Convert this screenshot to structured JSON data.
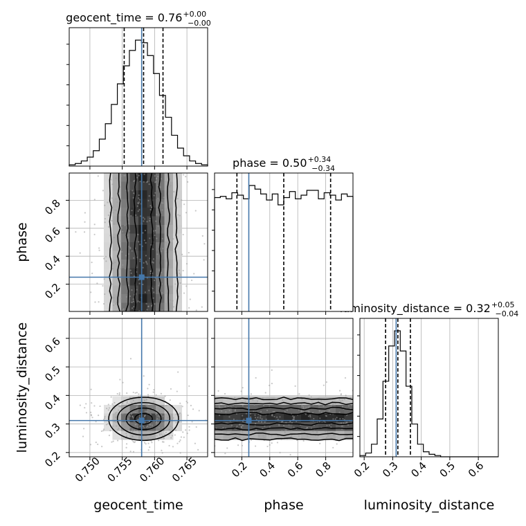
{
  "chart_data": {
    "type": "corner",
    "parameters": [
      {
        "name": "geocent_time",
        "label": "geocent_time",
        "title_main": "geocent_time = 0.76",
        "title_plus": "+0.00",
        "title_minus": "−0.00",
        "range": [
          0.7468,
          0.7682
        ],
        "ticks": [
          0.75,
          0.755,
          0.76,
          0.765
        ],
        "tick_labels": [
          "0.750",
          "0.755",
          "0.760",
          "0.765"
        ],
        "truth": 0.758,
        "quantiles": [
          0.7553,
          0.7583,
          0.7613
        ],
        "histogram": [
          1,
          2,
          4,
          7,
          12,
          21,
          33,
          48,
          64,
          78,
          90,
          98,
          96,
          86,
          72,
          55,
          38,
          24,
          14,
          8,
          4,
          2,
          1
        ]
      },
      {
        "name": "phase",
        "label": "phase",
        "title_main": "phase = 0.50",
        "title_plus": "+0.34",
        "title_minus": "−0.34",
        "range": [
          0.005,
          0.995
        ],
        "ticks": [
          0.2,
          0.4,
          0.6,
          0.8
        ],
        "tick_labels": [
          "0.2",
          "0.4",
          "0.6",
          "0.8"
        ],
        "truth": 0.25,
        "quantiles": [
          0.165,
          0.5,
          0.835
        ],
        "histogram": [
          94,
          95,
          93,
          98,
          96,
          93,
          104,
          101,
          97,
          92,
          97,
          88,
          94,
          99,
          93,
          96,
          100,
          100,
          93,
          98,
          96,
          92,
          97,
          95
        ]
      },
      {
        "name": "luminosity_distance",
        "label": "luminosity_distance",
        "title_main": "luminosity_distance = 0.32",
        "title_plus": "+0.05",
        "title_minus": "−0.04",
        "range": [
          0.185,
          0.67
        ],
        "ticks": [
          0.2,
          0.3,
          0.4,
          0.5,
          0.6
        ],
        "tick_labels": [
          "0.2",
          "0.3",
          "0.4",
          "0.5",
          "0.6"
        ],
        "truth": 0.312,
        "quantiles": [
          0.275,
          0.318,
          0.362
        ],
        "histogram": [
          1,
          3,
          10,
          30,
          60,
          88,
          100,
          84,
          56,
          26,
          10,
          4,
          2,
          1,
          0,
          0,
          0,
          0,
          0,
          0,
          0,
          0,
          0,
          0
        ]
      }
    ],
    "truth_color": "#4477aa",
    "grid": true,
    "pairs": [
      {
        "x": "geocent_time",
        "y": "phase",
        "contour_levels": [
          0.5,
          1.0,
          1.5,
          2.0
        ]
      },
      {
        "x": "geocent_time",
        "y": "luminosity_distance",
        "contour_levels": [
          0.5,
          1.0,
          1.5,
          2.0
        ]
      },
      {
        "x": "phase",
        "y": "luminosity_distance",
        "contour_levels": [
          0.5,
          1.0,
          1.5,
          2.0
        ]
      }
    ]
  }
}
